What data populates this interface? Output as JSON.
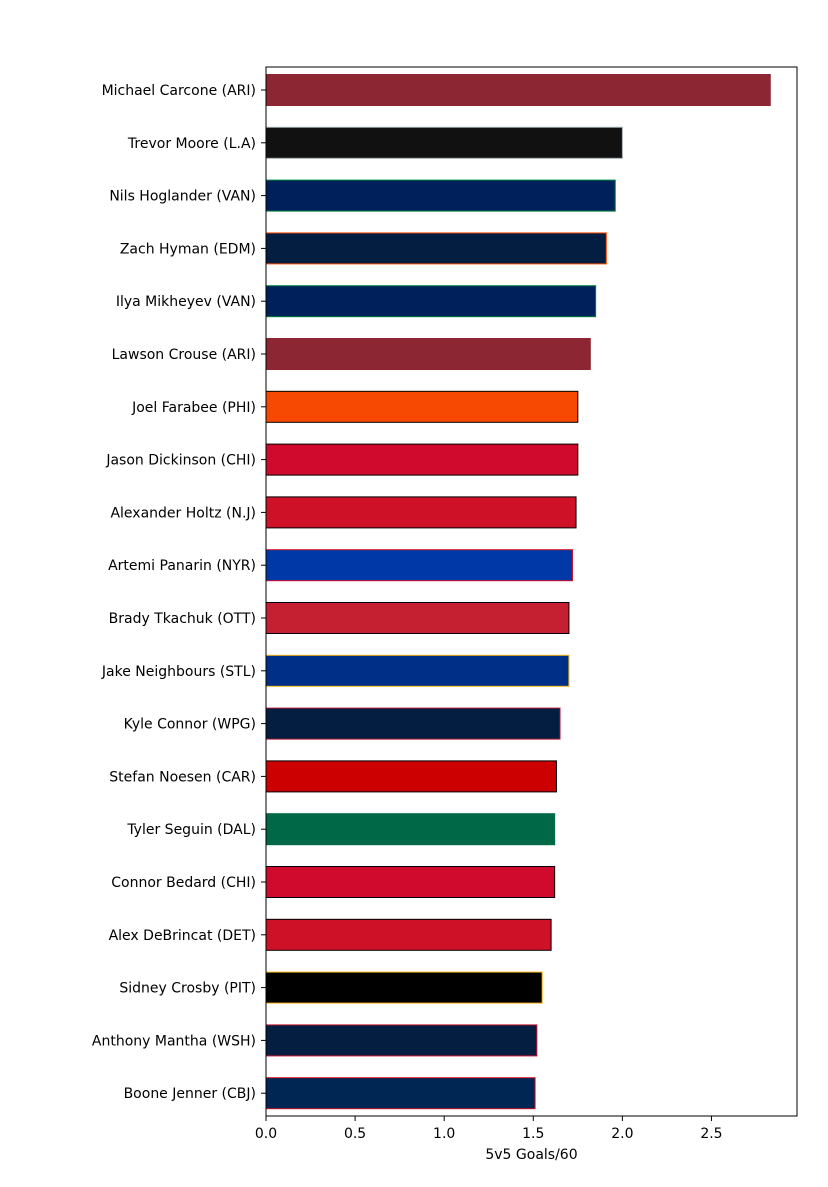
{
  "chart_data": {
    "type": "bar",
    "orientation": "horizontal",
    "title": "",
    "xlabel": "5v5 Goals/60",
    "ylabel": "",
    "xlim": [
      0,
      2.98
    ],
    "xticks": [
      "0.0",
      "0.5",
      "1.0",
      "1.5",
      "2.0",
      "2.5"
    ],
    "grid": false,
    "legend": "none",
    "categories": [
      "Michael Carcone (ARI)",
      "Trevor Moore (L.A)",
      "Nils Hoglander (VAN)",
      "Zach Hyman (EDM)",
      "Ilya Mikheyev (VAN)",
      "Lawson Crouse (ARI)",
      "Joel Farabee (PHI)",
      "Jason Dickinson (CHI)",
      "Alexander Holtz (N.J)",
      "Artemi Panarin (NYR)",
      "Brady Tkachuk (OTT)",
      "Jake Neighbours (STL)",
      "Kyle Connor (WPG)",
      "Stefan Noesen (CAR)",
      "Tyler Seguin (DAL)",
      "Connor Bedard (CHI)",
      "Alex DeBrincat (DET)",
      "Sidney Crosby (PIT)",
      "Anthony Mantha (WSH)",
      "Boone Jenner (CBJ)"
    ],
    "values": [
      2.83,
      2.0,
      1.96,
      1.91,
      1.85,
      1.82,
      1.75,
      1.75,
      1.74,
      1.72,
      1.7,
      1.7,
      1.65,
      1.63,
      1.62,
      1.62,
      1.6,
      1.55,
      1.52,
      1.51
    ],
    "bar_colors": [
      "#8C2633",
      "#111111",
      "#00205B",
      "#041E42",
      "#00205B",
      "#8C2633",
      "#F74902",
      "#CF0A2C",
      "#CE1126",
      "#0038A8",
      "#C52032",
      "#002F87",
      "#041E42",
      "#CC0000",
      "#006847",
      "#CF0A2C",
      "#CE1126",
      "#000000",
      "#041E42",
      "#002654"
    ],
    "edge_colors": [
      "#8C2633",
      "#A2AAAD",
      "#00843D",
      "#FF4C00",
      "#00843D",
      "#8C2633",
      "#000000",
      "#000000",
      "#000000",
      "#CE1126",
      "#000000",
      "#FCB514",
      "#AC162C",
      "#000000",
      "#006847",
      "#000000",
      "#000000",
      "#FCB514",
      "#C8102E",
      "#CE1126"
    ]
  }
}
